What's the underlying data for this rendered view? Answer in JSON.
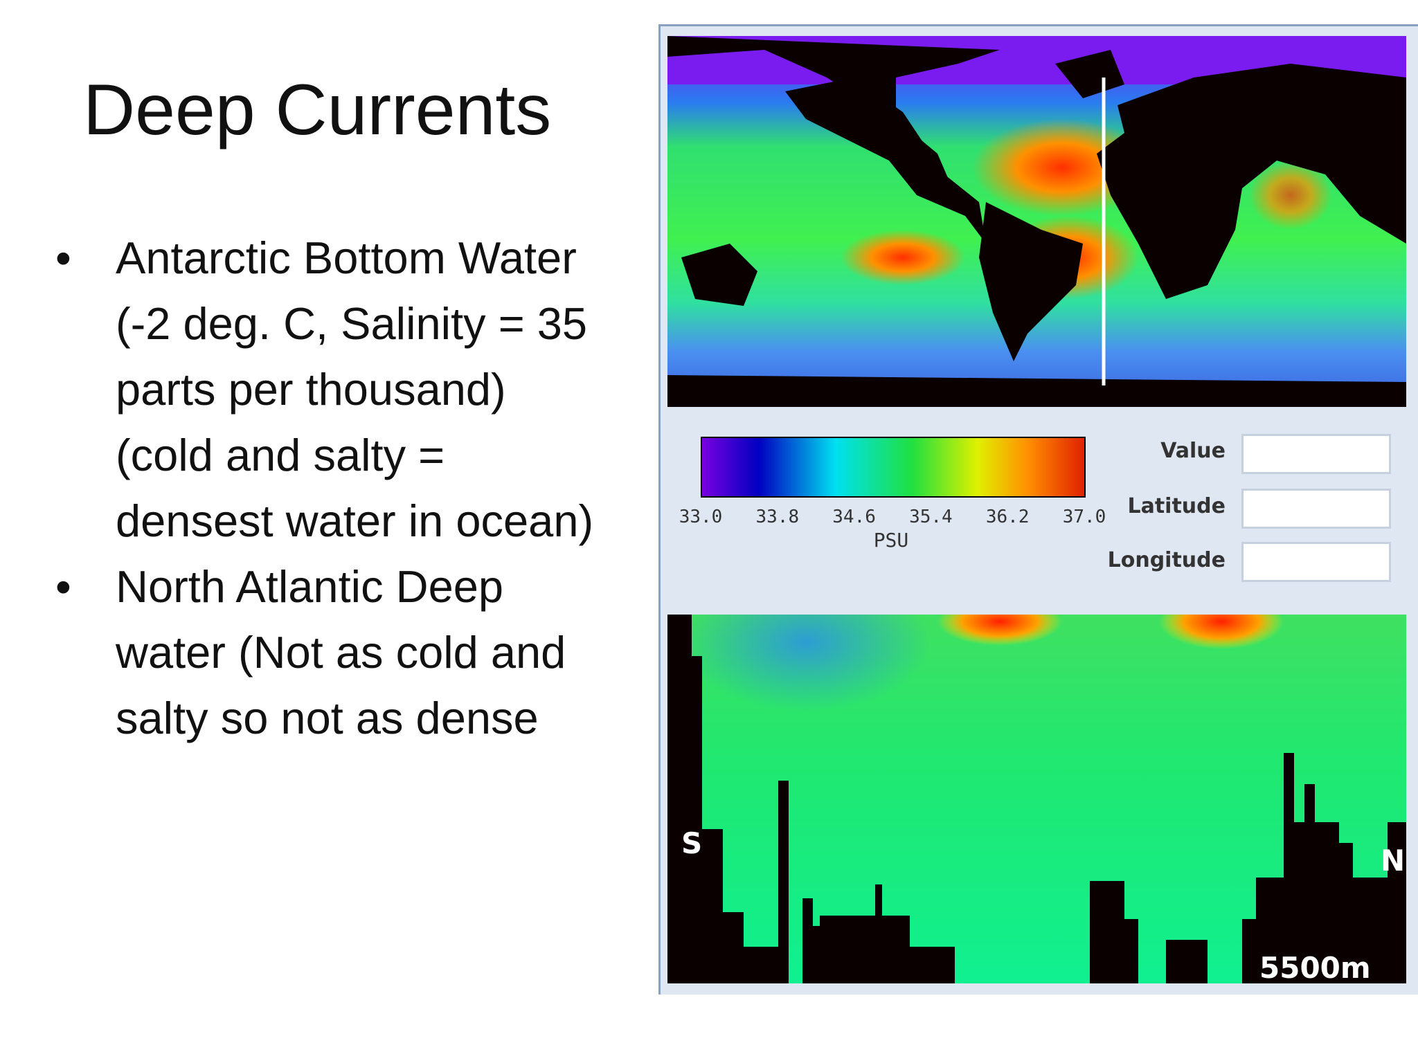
{
  "slide": {
    "title": "Deep Currents",
    "bullets": [
      "Antarctic Bottom Water (-2 deg. C, Salinity = 35 parts per thousand) (cold and salty = densest water in ocean)",
      "North Atlantic Deep water (Not as cold and salty so not as dense"
    ]
  },
  "figure": {
    "colorbar": {
      "ticks": [
        "33.0",
        "33.8",
        "34.6",
        "35.4",
        "36.2",
        "37.0"
      ],
      "unit": "PSU"
    },
    "fields": [
      "Value",
      "Latitude",
      "Longitude"
    ],
    "section": {
      "left": "S",
      "right": "N",
      "depth": "5500m"
    }
  }
}
